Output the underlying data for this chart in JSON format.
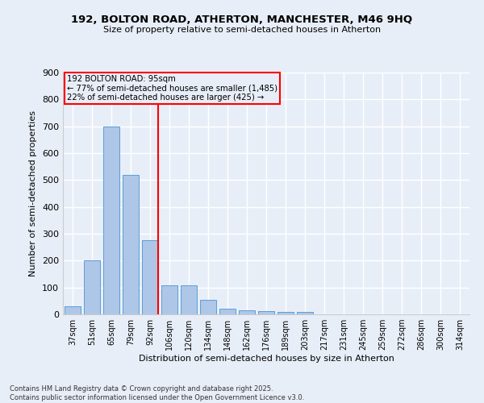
{
  "title_line1": "192, BOLTON ROAD, ATHERTON, MANCHESTER, M46 9HQ",
  "title_line2": "Size of property relative to semi-detached houses in Atherton",
  "xlabel": "Distribution of semi-detached houses by size in Atherton",
  "ylabel": "Number of semi-detached properties",
  "categories": [
    "37sqm",
    "51sqm",
    "65sqm",
    "79sqm",
    "92sqm",
    "106sqm",
    "120sqm",
    "134sqm",
    "148sqm",
    "162sqm",
    "176sqm",
    "189sqm",
    "203sqm",
    "217sqm",
    "231sqm",
    "245sqm",
    "259sqm",
    "272sqm",
    "286sqm",
    "300sqm",
    "314sqm"
  ],
  "values": [
    30,
    200,
    700,
    520,
    275,
    108,
    108,
    55,
    20,
    16,
    11,
    10,
    9,
    0,
    0,
    0,
    0,
    0,
    0,
    0,
    0
  ],
  "bar_color": "#aec6e8",
  "bar_edge_color": "#5a9fd4",
  "annotation_line1": "192 BOLTON ROAD: 95sqm",
  "annotation_line2": "← 77% of semi-detached houses are smaller (1,485)",
  "annotation_line3": "22% of semi-detached houses are larger (425) →",
  "vline_x": 4.4,
  "ylim": [
    0,
    900
  ],
  "yticks": [
    0,
    100,
    200,
    300,
    400,
    500,
    600,
    700,
    800,
    900
  ],
  "footer_line1": "Contains HM Land Registry data © Crown copyright and database right 2025.",
  "footer_line2": "Contains public sector information licensed under the Open Government Licence v3.0.",
  "background_color": "#e8eef8",
  "grid_color": "#ffffff"
}
